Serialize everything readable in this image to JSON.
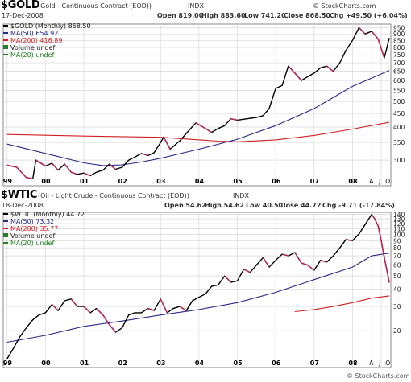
{
  "colors": {
    "price": "#000000",
    "ma50": "#2a2a8a",
    "ma200": "#d02020",
    "ma20": "#208020",
    "volume": "#2a7a2a",
    "grid": "#d8d8d8",
    "frame": "#888888"
  },
  "gold": {
    "symbol": "$GOLD",
    "name": "(Gold - Continuous Contract (EOD))",
    "exchange": "INDX",
    "date": "17-Dec-2008",
    "quote": {
      "open": "Open 819.00",
      "high": "High 883.60",
      "low": "Low 741.20",
      "close": "Close 868.50",
      "chg": "Chg +49.50 (+6.04%)"
    },
    "legend": {
      "price": "$GOLD (Monthly) 868.50",
      "ma50": "MA(50) 654.92",
      "ma200": "MA(200) 416.89",
      "volume": "Volume undef",
      "ma20": "MA(20) undef"
    },
    "watermark": "© StockCharts.com"
  },
  "wtic": {
    "symbol": "$WTIC",
    "name": "(Oil - Light Crude - Continuous Contract (EOD))",
    "exchange": "INDX",
    "date": "18-Dec-2008",
    "quote": {
      "open": "Open 54.62",
      "high": "High 54.62",
      "low": "Low 40.50",
      "close": "Close 44.72",
      "chg": "Chg -9.71 (-17.84%)"
    },
    "legend": {
      "price": "$WTIC (Monthly) 44.72",
      "ma50": "MA(50) 73.32",
      "ma200": "MA(200) 35.77",
      "volume": "Volume undef",
      "ma20": "MA(20) undef"
    },
    "watermark": "© StockCharts.com"
  },
  "chart_data": [
    {
      "type": "line",
      "title": "$GOLD (Gold - Continuous Contract (EOD)) INDX",
      "y_scale": "log",
      "ylim": [
        240,
        980
      ],
      "xlim": [
        1998.9,
        2009.0
      ],
      "x_ticks": [
        {
          "x": 1999,
          "label": "99"
        },
        {
          "x": 2000,
          "label": "00"
        },
        {
          "x": 2001,
          "label": "01"
        },
        {
          "x": 2002,
          "label": "02"
        },
        {
          "x": 2003,
          "label": "03"
        },
        {
          "x": 2004,
          "label": "04"
        },
        {
          "x": 2005,
          "label": "05"
        },
        {
          "x": 2006,
          "label": "06"
        },
        {
          "x": 2007,
          "label": "07"
        },
        {
          "x": 2008,
          "label": "08"
        },
        {
          "x": 2008.5,
          "label": "A"
        },
        {
          "x": 2008.75,
          "label": "J"
        },
        {
          "x": 2008.92,
          "label": "O"
        }
      ],
      "y_ticks": [
        300,
        350,
        400,
        450,
        500,
        550,
        600,
        650,
        700,
        750,
        800,
        850,
        900,
        950
      ],
      "grid": true,
      "series": [
        {
          "name": "$GOLD (Monthly)",
          "key": "price",
          "x": [
            1999.0,
            1999.25,
            1999.5,
            1999.67,
            1999.75,
            1999.83,
            2000.0,
            2000.17,
            2000.33,
            2000.5,
            2000.67,
            2000.83,
            2001.0,
            2001.17,
            2001.33,
            2001.5,
            2001.67,
            2001.75,
            2001.83,
            2002.0,
            2002.17,
            2002.33,
            2002.5,
            2002.67,
            2002.83,
            2003.0,
            2003.08,
            2003.25,
            2003.5,
            2003.75,
            2003.92,
            2004.17,
            2004.33,
            2004.5,
            2004.67,
            2004.83,
            2005.0,
            2005.25,
            2005.5,
            2005.67,
            2005.83,
            2006.0,
            2006.17,
            2006.33,
            2006.5,
            2006.67,
            2006.83,
            2007.0,
            2007.17,
            2007.33,
            2007.5,
            2007.67,
            2007.83,
            2008.0,
            2008.17,
            2008.33,
            2008.5,
            2008.67,
            2008.83,
            2008.96
          ],
          "y": [
            287,
            282,
            258,
            255,
            300,
            295,
            285,
            292,
            275,
            290,
            270,
            265,
            268,
            262,
            270,
            275,
            290,
            283,
            277,
            282,
            300,
            308,
            318,
            312,
            320,
            350,
            367,
            330,
            355,
            390,
            415,
            395,
            382,
            395,
            405,
            430,
            425,
            430,
            435,
            442,
            470,
            560,
            575,
            680,
            640,
            600,
            620,
            640,
            670,
            680,
            650,
            700,
            780,
            850,
            950,
            900,
            920,
            860,
            730,
            869
          ]
        },
        {
          "name": "MA(50)",
          "key": "ma50",
          "x": [
            1999.0,
            2000.0,
            2001.0,
            2001.5,
            2002.0,
            2002.5,
            2003.0,
            2004.0,
            2005.0,
            2006.0,
            2007.0,
            2008.0,
            2008.96
          ],
          "y": [
            345,
            318,
            293,
            286,
            288,
            295,
            305,
            330,
            360,
            405,
            470,
            570,
            655
          ]
        },
        {
          "name": "MA(200)",
          "key": "ma200",
          "x": [
            1999.0,
            2001.0,
            2003.0,
            2004.5,
            2005.0,
            2006.0,
            2007.0,
            2008.0,
            2008.96
          ],
          "y": [
            375,
            370,
            366,
            354,
            352,
            358,
            372,
            393,
            417
          ]
        }
      ]
    },
    {
      "type": "line",
      "title": "$WTIC (Oil - Light Crude - Continuous Contract (EOD)) INDX",
      "y_scale": "log",
      "ylim": [
        10.8,
        145
      ],
      "xlim": [
        1998.9,
        2009.0
      ],
      "x_ticks": [
        {
          "x": 1999,
          "label": "99"
        },
        {
          "x": 2000,
          "label": "00"
        },
        {
          "x": 2001,
          "label": "01"
        },
        {
          "x": 2002,
          "label": "02"
        },
        {
          "x": 2003,
          "label": "03"
        },
        {
          "x": 2004,
          "label": "04"
        },
        {
          "x": 2005,
          "label": "05"
        },
        {
          "x": 2006,
          "label": "06"
        },
        {
          "x": 2007,
          "label": "07"
        },
        {
          "x": 2008,
          "label": "08"
        },
        {
          "x": 2008.5,
          "label": "A"
        },
        {
          "x": 2008.75,
          "label": "J"
        },
        {
          "x": 2008.92,
          "label": "O"
        }
      ],
      "y_ticks": [
        20,
        30,
        40,
        50,
        60,
        70,
        80,
        90,
        100,
        110,
        120,
        130,
        140
      ],
      "y_tick_labels": [
        "20",
        "30",
        "40",
        "50",
        "60",
        "70",
        "80",
        "90",
        "100",
        "110",
        "120",
        "130",
        "140"
      ],
      "grid": true,
      "series": [
        {
          "name": "$WTIC (Monthly)",
          "key": "price",
          "x": [
            1999.0,
            1999.17,
            1999.33,
            1999.5,
            1999.67,
            1999.83,
            2000.0,
            2000.17,
            2000.33,
            2000.5,
            2000.67,
            2000.83,
            2001.0,
            2001.17,
            2001.33,
            2001.5,
            2001.67,
            2001.83,
            2002.0,
            2002.17,
            2002.33,
            2002.5,
            2002.67,
            2002.83,
            2003.0,
            2003.17,
            2003.33,
            2003.5,
            2003.67,
            2003.83,
            2004.0,
            2004.17,
            2004.33,
            2004.5,
            2004.67,
            2004.83,
            2005.0,
            2005.17,
            2005.33,
            2005.5,
            2005.67,
            2005.83,
            2006.0,
            2006.17,
            2006.33,
            2006.5,
            2006.67,
            2006.83,
            2007.0,
            2007.17,
            2007.33,
            2007.5,
            2007.67,
            2007.83,
            2008.0,
            2008.17,
            2008.33,
            2008.5,
            2008.58,
            2008.67,
            2008.75,
            2008.83,
            2008.96
          ],
          "y": [
            12.5,
            15,
            18,
            21,
            24,
            26,
            27,
            31,
            28,
            33,
            34,
            30,
            30,
            27,
            29,
            26,
            22,
            19.5,
            21,
            26,
            27,
            27,
            29,
            28,
            34,
            27,
            29,
            30,
            28,
            33,
            35,
            37,
            42,
            43,
            50,
            45,
            46,
            56,
            53,
            60,
            68,
            58,
            65,
            72,
            70,
            74,
            62,
            60,
            55,
            65,
            63,
            70,
            80,
            92,
            90,
            101,
            118,
            140,
            130,
            115,
            90,
            68,
            44.7
          ]
        },
        {
          "name": "MA(50)",
          "key": "ma50",
          "x": [
            1999.0,
            2000.0,
            2001.0,
            2002.0,
            2003.0,
            2004.0,
            2005.0,
            2006.0,
            2007.0,
            2008.0,
            2008.5,
            2008.96
          ],
          "y": [
            16.5,
            18.5,
            21.5,
            23.5,
            26,
            28.5,
            32,
            38,
            47,
            58,
            70,
            73.3
          ]
        },
        {
          "name": "MA(200)",
          "key": "ma200",
          "x": [
            2006.5,
            2007.0,
            2007.5,
            2008.0,
            2008.5,
            2008.96
          ],
          "y": [
            27.5,
            28.5,
            30,
            32,
            34.5,
            35.8
          ]
        }
      ]
    }
  ]
}
